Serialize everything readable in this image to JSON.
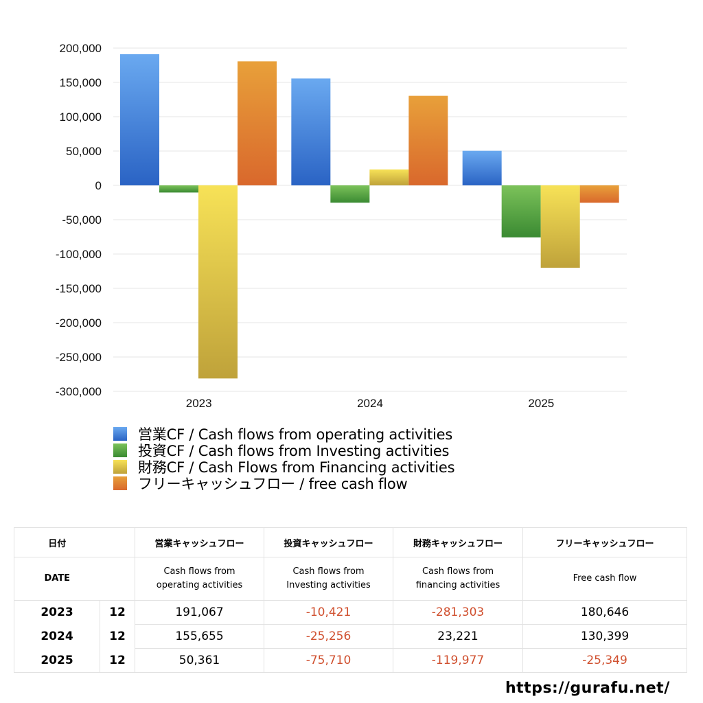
{
  "chart_data": {
    "type": "bar",
    "categories": [
      "2023",
      "2024",
      "2025"
    ],
    "ylim": [
      -300000,
      200000
    ],
    "y_ticks": [
      "200,000",
      "150,000",
      "100,000",
      "50,000",
      "0",
      "-50,000",
      "-100,000",
      "-150,000",
      "-200,000",
      "-250,000",
      "-300,000"
    ],
    "grid": true,
    "legend_position": "bottom-left",
    "series": [
      {
        "name": "営業CF / Cash flows from operating activities",
        "values": [
          191067,
          155655,
          50361
        ],
        "color_top": "#6aa9f0",
        "color_bottom": "#2a63c4"
      },
      {
        "name": "投資CF / Cash flows from Investing activities",
        "values": [
          -10421,
          -25256,
          -75710
        ],
        "color_top": "#7cc25a",
        "color_bottom": "#3a8a32"
      },
      {
        "name": "財務CF / Cash Flows from Financing activities",
        "values": [
          -281303,
          23221,
          -119977
        ],
        "color_top": "#f7e257",
        "color_bottom": "#bfa23a"
      },
      {
        "name": "フリーキャッシュフロー / free cash flow",
        "values": [
          180646,
          130399,
          -25349
        ],
        "color_top": "#e8a03a",
        "color_bottom": "#d9682c"
      }
    ]
  },
  "table": {
    "header_row1": [
      "日付",
      "",
      "営業キャッシュフロー",
      "投資キャッシュフロー",
      "財務キャッシュフロー",
      "フリーキャッシュフロー"
    ],
    "header_row2": {
      "date": "DATE",
      "operating": [
        "Cash flows from",
        "operating activities"
      ],
      "investing": [
        "Cash flows from",
        "Investing activities"
      ],
      "financing": [
        "Cash flows from",
        "financing activities"
      ],
      "free": "Free cash flow"
    },
    "rows": [
      {
        "year": "2023",
        "month": "12",
        "operating": "191,067",
        "investing": "-10,421",
        "financing": "-281,303",
        "free": "180,646"
      },
      {
        "year": "2024",
        "month": "12",
        "operating": "155,655",
        "investing": "-25,256",
        "financing": "23,221",
        "free": "130,399"
      },
      {
        "year": "2025",
        "month": "12",
        "operating": "50,361",
        "investing": "-75,710",
        "financing": "-119,977",
        "free": "-25,349"
      }
    ],
    "negative_color": "#d0502f"
  },
  "footer": {
    "url": "https://gurafu.net/"
  }
}
